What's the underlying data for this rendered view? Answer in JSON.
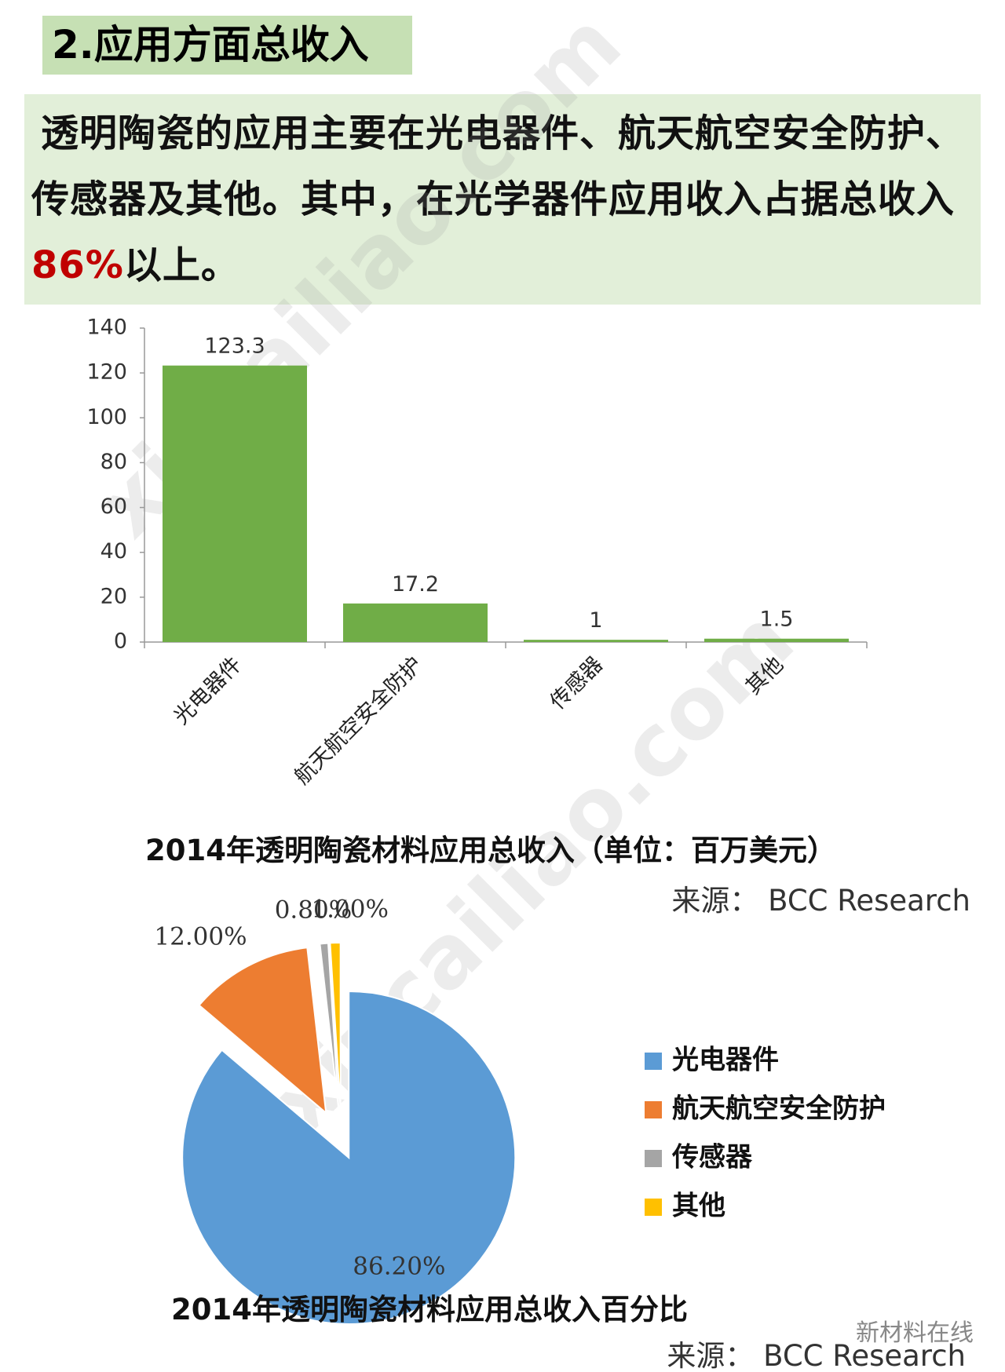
{
  "header": {
    "title": "2.应用方面总收入",
    "paragraph": [
      "透明陶瓷的应用主要在光电器件、航天航空安全防护、传感器及其他。其中，在光学器件应用收入占据总收入",
      "86%",
      "以上。"
    ]
  },
  "watermark": "xincailiao.com",
  "footer": "新材料在线",
  "chart_data": [
    {
      "type": "bar",
      "title": "2014年透明陶瓷材料应用总收入（单位：百万美元）",
      "source": "来源： BCC Research",
      "categories": [
        "光电器件",
        "航天航空安全防护",
        "传感器",
        "其他"
      ],
      "values": [
        123.3,
        17.2,
        1,
        1.5
      ],
      "color": "#70ad47",
      "ylim": [
        0,
        140
      ],
      "yticks": [
        0,
        20,
        40,
        60,
        80,
        100,
        120,
        140
      ]
    },
    {
      "type": "pie",
      "title": "2014年透明陶瓷材料应用总收入百分比",
      "source": "来源： BCC Research",
      "categories": [
        "光电器件",
        "航天航空安全防护",
        "传感器",
        "其他"
      ],
      "values": [
        86.2,
        12.0,
        0.8,
        1.0
      ],
      "value_labels": [
        "86.20%",
        "12.00%",
        "0.80%",
        "1.00%"
      ],
      "colors": [
        "#5b9bd5",
        "#ed7d31",
        "#a5a5a5",
        "#ffc000"
      ],
      "legend": "right"
    }
  ]
}
